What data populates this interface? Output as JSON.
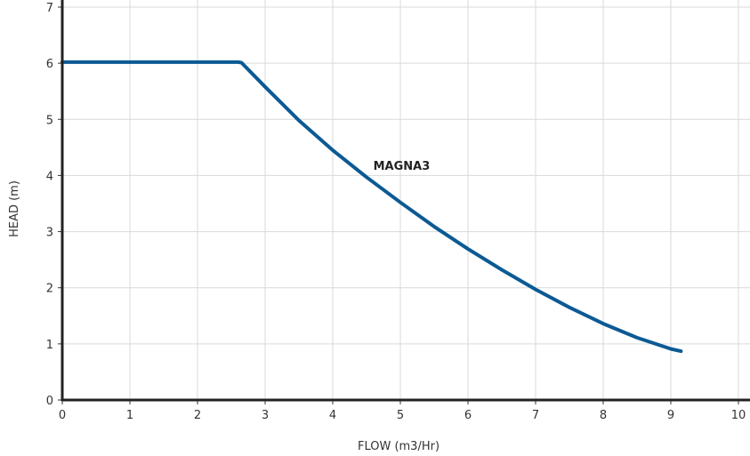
{
  "chart_data": {
    "type": "line",
    "xlabel": "FLOW (m3/Hr)",
    "ylabel": "HEAD (m)",
    "xlim": [
      0,
      10
    ],
    "ylim": [
      0,
      7
    ],
    "x_ticks": [
      "0",
      "1",
      "2",
      "3",
      "4",
      "5",
      "6",
      "7",
      "8",
      "9",
      "10"
    ],
    "y_ticks": [
      "0",
      "1",
      "2",
      "3",
      "4",
      "5",
      "6",
      "7"
    ],
    "grid": true,
    "series_color": "#0b5a94",
    "series": [
      {
        "x": [
          0,
          0.5,
          1.0,
          1.5,
          2.0,
          2.5,
          2.6,
          2.65,
          3.0,
          3.5,
          4.0,
          4.5,
          5.0,
          5.5,
          6.0,
          6.5,
          7.0,
          7.5,
          8.0,
          8.5,
          9.0,
          9.15
        ],
        "y": [
          6.02,
          6.02,
          6.02,
          6.02,
          6.02,
          6.02,
          6.02,
          6.01,
          5.58,
          4.98,
          4.45,
          3.97,
          3.52,
          3.09,
          2.69,
          2.32,
          1.97,
          1.65,
          1.36,
          1.11,
          0.91,
          0.87
        ]
      }
    ],
    "annotations": [
      {
        "text": "MAGNA3",
        "x": 4.6,
        "y": 4.1
      }
    ]
  }
}
